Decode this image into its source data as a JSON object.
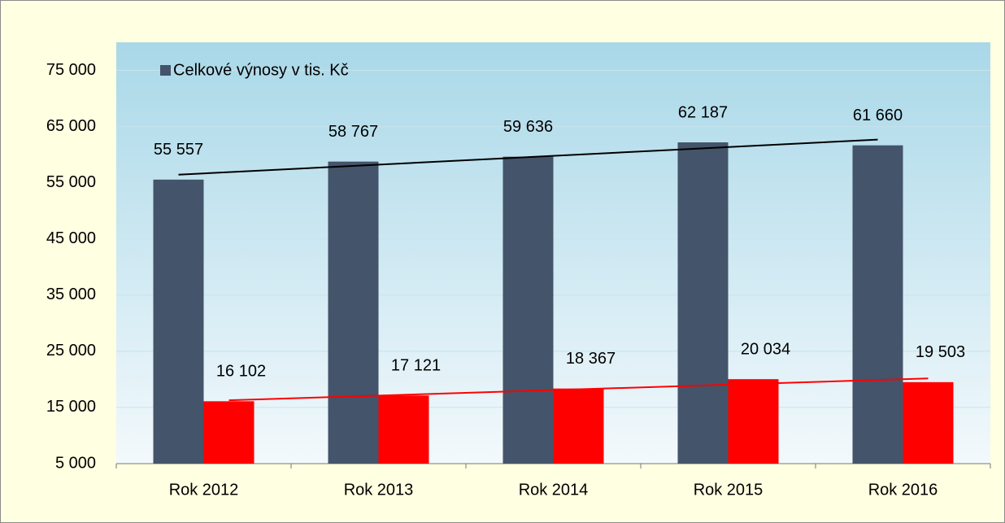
{
  "chart_data": {
    "type": "bar",
    "categories": [
      "Rok 2012",
      "Rok 2013",
      "Rok 2014",
      "Rok 2015",
      "Rok 2016"
    ],
    "series": [
      {
        "name": "Celkové výnosy v tis. Kč",
        "color": "#44546a",
        "values": [
          55557,
          58767,
          59636,
          62187,
          61660
        ],
        "value_labels": [
          "55 557",
          "58 767",
          "59 636",
          "62 187",
          "61 660"
        ],
        "trendline": true,
        "trendline_color": "#000000"
      },
      {
        "color": "#ff0000",
        "values": [
          16102,
          17121,
          18367,
          20034,
          19503
        ],
        "value_labels": [
          "16 102",
          "17 121",
          "18 367",
          "20 034",
          "19 503"
        ],
        "trendline": true,
        "trendline_color": "#ff0000"
      }
    ],
    "ylim": [
      5000,
      80000
    ],
    "yticks": [
      {
        "value": 5000,
        "label": "5 000"
      },
      {
        "value": 15000,
        "label": "15 000"
      },
      {
        "value": 25000,
        "label": "25 000"
      },
      {
        "value": 35000,
        "label": "35 000"
      },
      {
        "value": 45000,
        "label": "45 000"
      },
      {
        "value": 55000,
        "label": "55 000"
      },
      {
        "value": 65000,
        "label": "65 000"
      },
      {
        "value": 75000,
        "label": "75 000"
      }
    ],
    "grid": true,
    "legend": "top-left"
  }
}
